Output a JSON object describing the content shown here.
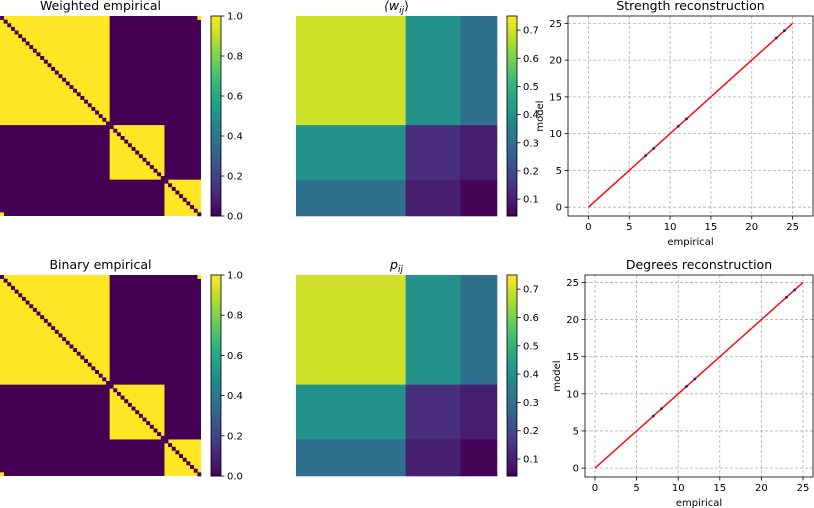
{
  "palette": {
    "dark": "#440154",
    "yellow": "#fde725",
    "viridis_stops": [
      "#440154",
      "#482878",
      "#3e4989",
      "#31688e",
      "#26828e",
      "#1f9e89",
      "#35b779",
      "#6ece58",
      "#b5de2b",
      "#fde725"
    ],
    "line_color": "#ff0000",
    "point_color": "#1f1f99"
  },
  "chart_data": [
    {
      "type": "heatmap",
      "title": "Weighted empirical",
      "n_nodes": 55,
      "blocks": [
        {
          "start": 0,
          "size": 30
        },
        {
          "start": 30,
          "size": 15
        },
        {
          "start": 45,
          "size": 10
        }
      ],
      "in_block_value": 1.0,
      "off_block_value": 0.0,
      "diagonal_value": 0.0,
      "corner_links": [
        [
          0,
          54
        ]
      ],
      "colorbar": {
        "vmin": 0,
        "vmax": 1,
        "ticks": [
          "0.0",
          "0.2",
          "0.4",
          "0.6",
          "0.8",
          "1.0"
        ],
        "tick_values": [
          0,
          0.2,
          0.4,
          0.6,
          0.8,
          1.0
        ]
      }
    },
    {
      "type": "heatmap",
      "title": "⟨w",
      "title_sub": "ij",
      "title_suffix": "⟩",
      "n_nodes": 55,
      "block_sizes": [
        30,
        15,
        10
      ],
      "block_matrix": [
        [
          0.7,
          0.4,
          0.3
        ],
        [
          0.4,
          0.13,
          0.1
        ],
        [
          0.3,
          0.1,
          0.05
        ]
      ],
      "colorbar": {
        "vmin": 0.04,
        "vmax": 0.75,
        "ticks": [
          "0.1",
          "0.2",
          "0.3",
          "0.4",
          "0.5",
          "0.6",
          "0.7"
        ],
        "tick_values": [
          0.1,
          0.2,
          0.3,
          0.4,
          0.5,
          0.6,
          0.7
        ]
      }
    },
    {
      "type": "scatter",
      "title": "Strength reconstruction",
      "xlabel": "empirical",
      "ylabel": "model",
      "xlim": [
        -2.5,
        27.5
      ],
      "ylim": [
        -1.2,
        26
      ],
      "xticks": [
        0,
        5,
        10,
        15,
        20,
        25
      ],
      "yticks": [
        0,
        5,
        10,
        15,
        20,
        25
      ],
      "grid": true,
      "points": [
        [
          7,
          7
        ],
        [
          8,
          8
        ],
        [
          11,
          11
        ],
        [
          12,
          12
        ],
        [
          23,
          23
        ],
        [
          24,
          24
        ]
      ],
      "reference_line": [
        [
          0,
          0
        ],
        [
          25,
          25
        ]
      ]
    },
    {
      "type": "heatmap",
      "title": "Binary empirical",
      "n_nodes": 55,
      "blocks": [
        {
          "start": 0,
          "size": 30
        },
        {
          "start": 30,
          "size": 15
        },
        {
          "start": 45,
          "size": 10
        }
      ],
      "in_block_value": 1.0,
      "off_block_value": 0.0,
      "diagonal_value": 0.0,
      "corner_links": [
        [
          0,
          54
        ]
      ],
      "colorbar": {
        "vmin": 0,
        "vmax": 1,
        "ticks": [
          "0.0",
          "0.2",
          "0.4",
          "0.6",
          "0.8",
          "1.0"
        ],
        "tick_values": [
          0,
          0.2,
          0.4,
          0.6,
          0.8,
          1.0
        ]
      }
    },
    {
      "type": "heatmap",
      "title": "p",
      "title_sub": "ij",
      "title_suffix": "",
      "n_nodes": 55,
      "block_sizes": [
        30,
        15,
        10
      ],
      "block_matrix": [
        [
          0.7,
          0.4,
          0.3
        ],
        [
          0.4,
          0.13,
          0.1
        ],
        [
          0.3,
          0.1,
          0.05
        ]
      ],
      "colorbar": {
        "vmin": 0.04,
        "vmax": 0.75,
        "ticks": [
          "0.1",
          "0.2",
          "0.3",
          "0.4",
          "0.5",
          "0.6",
          "0.7"
        ],
        "tick_values": [
          0.1,
          0.2,
          0.3,
          0.4,
          0.5,
          0.6,
          0.7
        ]
      }
    },
    {
      "type": "scatter",
      "title": "Degrees reconstruction",
      "xlabel": "empirical",
      "ylabel": "model",
      "xlim": [
        -1.2,
        26.2
      ],
      "ylim": [
        -1.2,
        26
      ],
      "xticks": [
        0,
        5,
        10,
        15,
        20,
        25
      ],
      "yticks": [
        0,
        5,
        10,
        15,
        20,
        25
      ],
      "grid": true,
      "points": [
        [
          7,
          7
        ],
        [
          8,
          8
        ],
        [
          11,
          11
        ],
        [
          12,
          12
        ],
        [
          23,
          23
        ],
        [
          24,
          24
        ]
      ],
      "reference_line": [
        [
          0,
          0
        ],
        [
          25,
          25
        ]
      ]
    }
  ]
}
